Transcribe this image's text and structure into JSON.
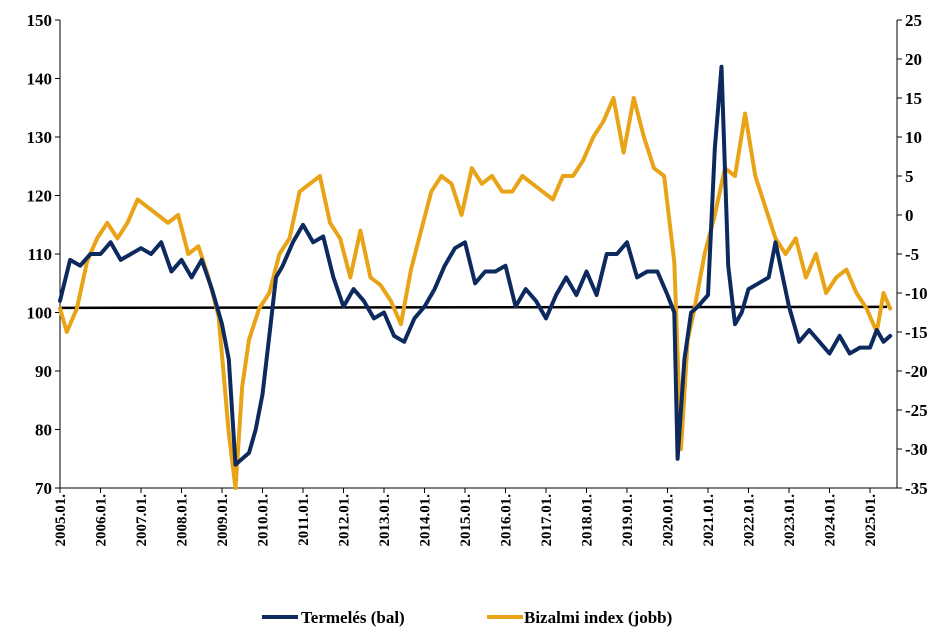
{
  "chart_data": {
    "type": "line",
    "title": "",
    "xlabel": "",
    "ylabel_left": "",
    "ylabel_right": "",
    "ylim_left": [
      70,
      150
    ],
    "ylim_right": [
      -35,
      25
    ],
    "yticks_left": [
      "70",
      "80",
      "90",
      "100",
      "110",
      "120",
      "130",
      "140",
      "150"
    ],
    "yticks_right": [
      "-35",
      "-30",
      "-25",
      "-20",
      "-15",
      "-10",
      "-5",
      "0",
      "5",
      "10",
      "15",
      "20",
      "25"
    ],
    "x_ticks": [
      "2005.01.",
      "2006.01.",
      "2007.01.",
      "2008.01.",
      "2009.01.",
      "2010.01.",
      "2011.01.",
      "2012.01.",
      "2013.01.",
      "2014.01.",
      "2015.01.",
      "2016.01.",
      "2017.01.",
      "2018.01.",
      "2019.01.",
      "2020.01.",
      "2021.01.",
      "2022.01.",
      "2023.01.",
      "2024.01.",
      "2025.01."
    ],
    "grid": false,
    "legend_position": "bottom",
    "reference_line": {
      "axis": "left",
      "value": 100.8,
      "color": "#000000"
    },
    "series": [
      {
        "name": "Termelés (bal)",
        "axis": "left",
        "color": "#0d2a5e",
        "points": [
          [
            "2005-01",
            102
          ],
          [
            "2005-04",
            109
          ],
          [
            "2005-07",
            108
          ],
          [
            "2005-10",
            110
          ],
          [
            "2006-01",
            110
          ],
          [
            "2006-04",
            112
          ],
          [
            "2006-07",
            109
          ],
          [
            "2006-10",
            110
          ],
          [
            "2007-01",
            111
          ],
          [
            "2007-04",
            110
          ],
          [
            "2007-07",
            112
          ],
          [
            "2007-10",
            107
          ],
          [
            "2008-01",
            109
          ],
          [
            "2008-04",
            106
          ],
          [
            "2008-07",
            109
          ],
          [
            "2008-10",
            104
          ],
          [
            "2009-01",
            98
          ],
          [
            "2009-03",
            92
          ],
          [
            "2009-05",
            74
          ],
          [
            "2009-07",
            75
          ],
          [
            "2009-09",
            76
          ],
          [
            "2009-11",
            80
          ],
          [
            "2010-01",
            86
          ],
          [
            "2010-03",
            96
          ],
          [
            "2010-05",
            106
          ],
          [
            "2010-07",
            108
          ],
          [
            "2010-10",
            112
          ],
          [
            "2011-01",
            115
          ],
          [
            "2011-04",
            112
          ],
          [
            "2011-07",
            113
          ],
          [
            "2011-10",
            106
          ],
          [
            "2012-01",
            101
          ],
          [
            "2012-04",
            104
          ],
          [
            "2012-07",
            102
          ],
          [
            "2012-10",
            99
          ],
          [
            "2013-01",
            100
          ],
          [
            "2013-04",
            96
          ],
          [
            "2013-07",
            95
          ],
          [
            "2013-10",
            99
          ],
          [
            "2014-01",
            101
          ],
          [
            "2014-04",
            104
          ],
          [
            "2014-07",
            108
          ],
          [
            "2014-10",
            111
          ],
          [
            "2015-01",
            112
          ],
          [
            "2015-04",
            105
          ],
          [
            "2015-07",
            107
          ],
          [
            "2015-10",
            107
          ],
          [
            "2016-01",
            108
          ],
          [
            "2016-04",
            101
          ],
          [
            "2016-07",
            104
          ],
          [
            "2016-10",
            102
          ],
          [
            "2017-01",
            99
          ],
          [
            "2017-04",
            103
          ],
          [
            "2017-07",
            106
          ],
          [
            "2017-10",
            103
          ],
          [
            "2018-01",
            107
          ],
          [
            "2018-04",
            103
          ],
          [
            "2018-07",
            110
          ],
          [
            "2018-10",
            110
          ],
          [
            "2019-01",
            112
          ],
          [
            "2019-04",
            106
          ],
          [
            "2019-07",
            107
          ],
          [
            "2019-10",
            107
          ],
          [
            "2020-01",
            103
          ],
          [
            "2020-03",
            100
          ],
          [
            "2020-04",
            75
          ],
          [
            "2020-06",
            92
          ],
          [
            "2020-08",
            100
          ],
          [
            "2020-10",
            101
          ],
          [
            "2021-01",
            103
          ],
          [
            "2021-03",
            128
          ],
          [
            "2021-05",
            142
          ],
          [
            "2021-07",
            108
          ],
          [
            "2021-09",
            98
          ],
          [
            "2021-11",
            100
          ],
          [
            "2022-01",
            104
          ],
          [
            "2022-04",
            105
          ],
          [
            "2022-07",
            106
          ],
          [
            "2022-09",
            112
          ],
          [
            "2023-01",
            101
          ],
          [
            "2023-04",
            95
          ],
          [
            "2023-07",
            97
          ],
          [
            "2023-10",
            95
          ],
          [
            "2024-01",
            93
          ],
          [
            "2024-04",
            96
          ],
          [
            "2024-07",
            93
          ],
          [
            "2024-10",
            94
          ],
          [
            "2025-01",
            94
          ],
          [
            "2025-03",
            97
          ],
          [
            "2025-05",
            95
          ],
          [
            "2025-07",
            96
          ]
        ]
      },
      {
        "name": "Bizalmi index (jobb)",
        "axis": "right",
        "color": "#e8a317",
        "points": [
          [
            "2005-01",
            -12
          ],
          [
            "2005-03",
            -15
          ],
          [
            "2005-06",
            -12
          ],
          [
            "2005-09",
            -6
          ],
          [
            "2005-12",
            -3
          ],
          [
            "2006-03",
            -1
          ],
          [
            "2006-06",
            -3
          ],
          [
            "2006-09",
            -1
          ],
          [
            "2006-12",
            2
          ],
          [
            "2007-03",
            1
          ],
          [
            "2007-06",
            0
          ],
          [
            "2007-09",
            -1
          ],
          [
            "2007-12",
            0
          ],
          [
            "2008-03",
            -5
          ],
          [
            "2008-06",
            -4
          ],
          [
            "2008-09",
            -8
          ],
          [
            "2008-12",
            -13
          ],
          [
            "2009-03",
            -28
          ],
          [
            "2009-05",
            -35
          ],
          [
            "2009-07",
            -22
          ],
          [
            "2009-09",
            -16
          ],
          [
            "2009-12",
            -12
          ],
          [
            "2010-03",
            -10
          ],
          [
            "2010-06",
            -5
          ],
          [
            "2010-09",
            -3
          ],
          [
            "2010-12",
            3
          ],
          [
            "2011-03",
            4
          ],
          [
            "2011-06",
            5
          ],
          [
            "2011-09",
            -1
          ],
          [
            "2011-12",
            -3
          ],
          [
            "2012-03",
            -8
          ],
          [
            "2012-06",
            -2
          ],
          [
            "2012-09",
            -8
          ],
          [
            "2012-12",
            -9
          ],
          [
            "2013-03",
            -11
          ],
          [
            "2013-06",
            -14
          ],
          [
            "2013-09",
            -7
          ],
          [
            "2013-12",
            -2
          ],
          [
            "2014-03",
            3
          ],
          [
            "2014-06",
            5
          ],
          [
            "2014-09",
            4
          ],
          [
            "2014-12",
            0
          ],
          [
            "2015-03",
            6
          ],
          [
            "2015-06",
            4
          ],
          [
            "2015-09",
            5
          ],
          [
            "2015-12",
            3
          ],
          [
            "2016-03",
            3
          ],
          [
            "2016-06",
            5
          ],
          [
            "2016-09",
            4
          ],
          [
            "2016-12",
            3
          ],
          [
            "2017-03",
            2
          ],
          [
            "2017-06",
            5
          ],
          [
            "2017-09",
            5
          ],
          [
            "2017-12",
            7
          ],
          [
            "2018-03",
            10
          ],
          [
            "2018-06",
            12
          ],
          [
            "2018-09",
            15
          ],
          [
            "2018-12",
            8
          ],
          [
            "2019-03",
            15
          ],
          [
            "2019-06",
            10
          ],
          [
            "2019-09",
            6
          ],
          [
            "2019-12",
            5
          ],
          [
            "2020-03",
            -6
          ],
          [
            "2020-05",
            -30
          ],
          [
            "2020-07",
            -16
          ],
          [
            "2020-09",
            -12
          ],
          [
            "2020-12",
            -5
          ],
          [
            "2021-03",
            0
          ],
          [
            "2021-06",
            6
          ],
          [
            "2021-09",
            5
          ],
          [
            "2021-12",
            13
          ],
          [
            "2022-03",
            5
          ],
          [
            "2022-06",
            1
          ],
          [
            "2022-09",
            -3
          ],
          [
            "2022-12",
            -5
          ],
          [
            "2023-03",
            -3
          ],
          [
            "2023-06",
            -8
          ],
          [
            "2023-09",
            -5
          ],
          [
            "2023-12",
            -10
          ],
          [
            "2024-03",
            -8
          ],
          [
            "2024-06",
            -7
          ],
          [
            "2024-09",
            -10
          ],
          [
            "2024-12",
            -12
          ],
          [
            "2025-03",
            -15
          ],
          [
            "2025-05",
            -10
          ],
          [
            "2025-07",
            -12
          ]
        ]
      }
    ]
  }
}
